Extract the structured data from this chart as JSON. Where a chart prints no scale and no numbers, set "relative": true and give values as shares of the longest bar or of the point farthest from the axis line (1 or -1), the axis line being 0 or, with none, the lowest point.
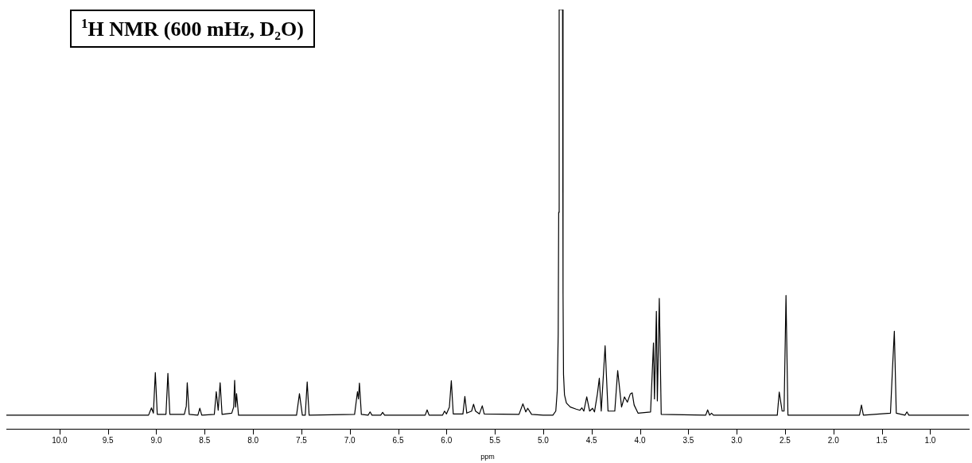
{
  "chart_data": {
    "type": "line",
    "title": "$^{1}$H NMR (600 mHz, D₂O)",
    "xlabel": "ppm",
    "relative": true,
    "grid": false,
    "legend": false,
    "marker": "none",
    "line_style": "solid",
    "xlim": [
      10.55,
      0.6
    ],
    "xticks": [
      {
        "value": 10,
        "label": "10.0"
      },
      {
        "value": 9.5,
        "label": "9.5"
      },
      {
        "value": 9,
        "label": "9.0"
      },
      {
        "value": 8.5,
        "label": "8.5"
      },
      {
        "value": 8,
        "label": "8.0"
      },
      {
        "value": 7.5,
        "label": "7.5"
      },
      {
        "value": 7,
        "label": "7.0"
      },
      {
        "value": 6.5,
        "label": "6.5"
      },
      {
        "value": 6,
        "label": "6.0"
      },
      {
        "value": 5.5,
        "label": "5.5"
      },
      {
        "value": 5,
        "label": "5.0"
      },
      {
        "value": 4.5,
        "label": "4.5"
      },
      {
        "value": 4,
        "label": "4.0"
      },
      {
        "value": 3.5,
        "label": "3.5"
      },
      {
        "value": 3,
        "label": "3.0"
      },
      {
        "value": 2.5,
        "label": "2.5"
      },
      {
        "value": 2,
        "label": "2.0"
      },
      {
        "value": 1.5,
        "label": "1.5"
      },
      {
        "value": 1,
        "label": "1.0"
      }
    ],
    "series": [
      {
        "color": "#000000",
        "x": [
          10.55,
          9.08,
          9.05,
          9.03,
          9.01,
          8.99,
          8.9,
          8.88,
          8.86,
          8.71,
          8.69,
          8.68,
          8.66,
          8.57,
          8.55,
          8.53,
          8.4,
          8.38,
          8.36,
          8.34,
          8.32,
          8.22,
          8.2,
          8.19,
          8.18,
          8.17,
          8.15,
          7.55,
          7.52,
          7.49,
          7.46,
          7.44,
          7.42,
          6.95,
          6.92,
          6.91,
          6.9,
          6.88,
          6.81,
          6.79,
          6.77,
          6.68,
          6.66,
          6.64,
          6.22,
          6.2,
          6.18,
          6.04,
          6.02,
          6,
          5.97,
          5.95,
          5.93,
          5.83,
          5.81,
          5.79,
          5.74,
          5.72,
          5.7,
          5.66,
          5.63,
          5.61,
          5.25,
          5.21,
          5.18,
          5.16,
          5.12,
          5,
          4.9,
          4.87,
          4.855,
          4.845,
          4.84,
          4.835,
          4.8,
          4.795,
          4.79,
          4.78,
          4.76,
          4.72,
          4.66,
          4.62,
          4.6,
          4.58,
          4.55,
          4.52,
          4.49,
          4.47,
          4.44,
          4.42,
          4.4,
          4.36,
          4.33,
          4.26,
          4.23,
          4.19,
          4.16,
          4.13,
          4.1,
          4.08,
          4.06,
          4.02,
          3.89,
          3.86,
          3.85,
          3.83,
          3.82,
          3.8,
          3.78,
          3.32,
          3.3,
          3.28,
          3.26,
          3.24,
          2.58,
          2.56,
          2.53,
          2.51,
          2.49,
          2.47,
          1.73,
          1.71,
          1.69,
          1.41,
          1.39,
          1.37,
          1.35,
          1.26,
          1.24,
          1.22,
          0.6
        ],
        "values": [
          0,
          0,
          0.018,
          0.005,
          0.105,
          0.002,
          0.002,
          0.103,
          0.002,
          0.002,
          0.022,
          0.08,
          0.002,
          0,
          0.017,
          0,
          0.002,
          0.058,
          0.012,
          0.08,
          0.002,
          0.005,
          0.02,
          0.086,
          0.02,
          0.053,
          0,
          0,
          0.053,
          0,
          0,
          0.082,
          0,
          0.002,
          0.058,
          0.04,
          0.079,
          0.002,
          0,
          0.008,
          0,
          0,
          0.007,
          0,
          0,
          0.013,
          0,
          0,
          0.01,
          0.003,
          0.02,
          0.085,
          0.003,
          0.003,
          0.046,
          0.005,
          0.01,
          0.027,
          0.01,
          0.003,
          0.023,
          0.003,
          0.002,
          0.028,
          0.008,
          0.017,
          0.002,
          0,
          0,
          0.01,
          0.06,
          0.2,
          0.5,
          1,
          1,
          0.3,
          0.1,
          0.05,
          0.03,
          0.02,
          0.015,
          0.012,
          0.018,
          0.01,
          0.045,
          0.01,
          0.017,
          0.008,
          0.052,
          0.091,
          0.01,
          0.171,
          0.01,
          0.01,
          0.11,
          0.02,
          0.045,
          0.032,
          0.052,
          0.055,
          0.025,
          0.005,
          0.008,
          0.178,
          0.04,
          0.256,
          0.035,
          0.288,
          0.002,
          0,
          0.013,
          0,
          0.005,
          0,
          0,
          0.057,
          0.01,
          0.01,
          0.295,
          0,
          0,
          0.025,
          0,
          0.005,
          0.11,
          0.207,
          0.005,
          0,
          0.008,
          0,
          0
        ]
      }
    ]
  }
}
